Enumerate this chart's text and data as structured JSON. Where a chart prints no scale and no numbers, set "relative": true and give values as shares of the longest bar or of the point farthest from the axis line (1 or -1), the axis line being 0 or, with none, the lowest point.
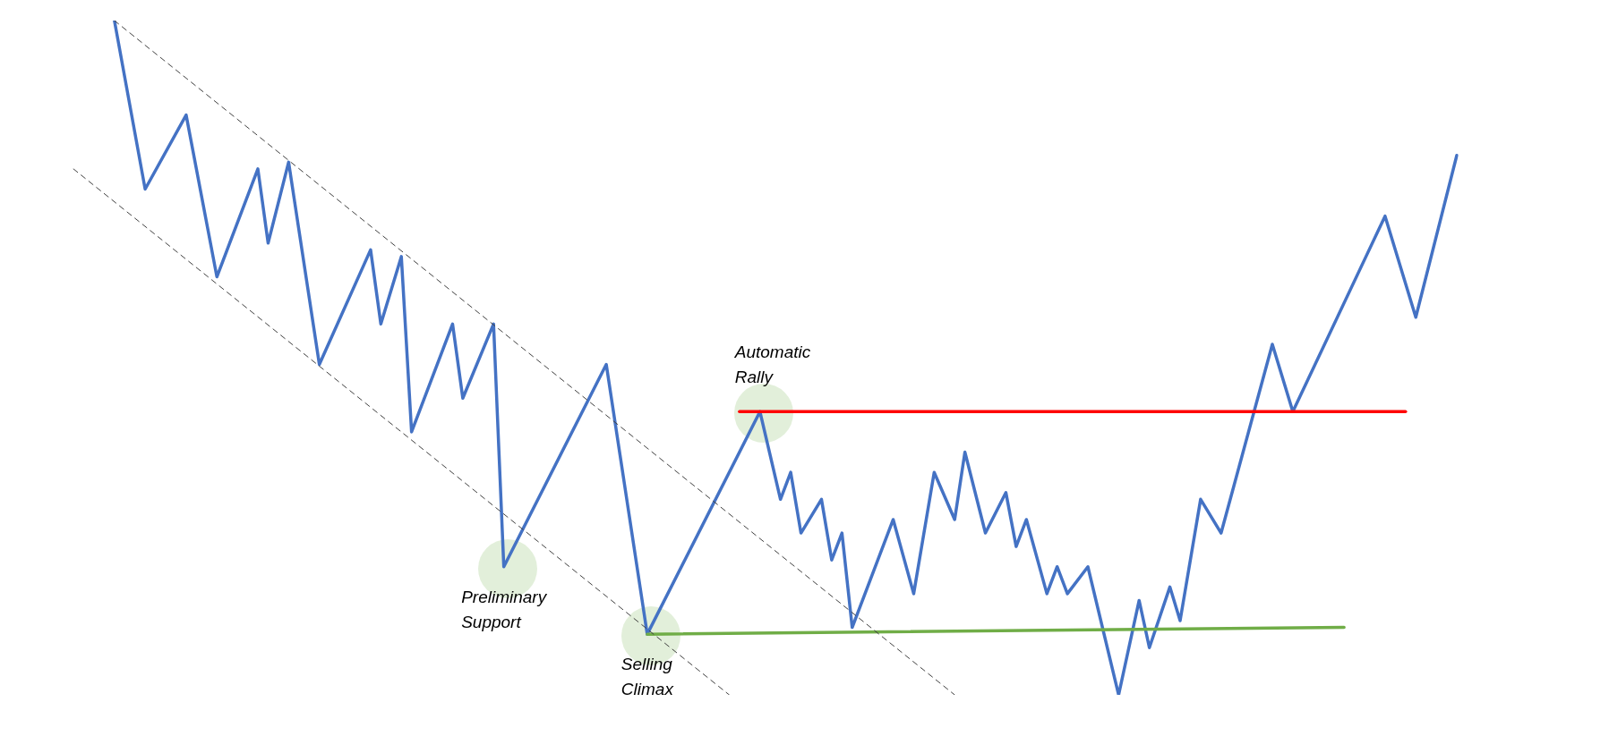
{
  "chart_data": {
    "type": "line",
    "relative": true,
    "marker": "none",
    "categories": [
      null,
      null,
      null,
      null,
      null,
      null,
      null,
      null,
      null,
      null,
      null,
      null,
      null,
      null,
      null,
      null,
      null,
      null,
      null,
      null,
      null,
      null,
      null,
      null,
      null,
      null,
      null,
      null,
      null,
      null,
      null,
      null,
      null,
      null,
      null,
      null,
      null,
      null,
      null,
      null,
      null,
      null,
      null,
      null,
      null,
      null,
      null,
      null,
      null,
      null,
      null,
      null,
      null,
      null,
      null,
      null,
      null,
      null,
      null,
      null,
      null,
      null,
      null,
      null,
      null,
      null,
      null,
      null,
      null,
      null,
      null,
      null,
      null,
      null,
      null,
      null,
      null,
      null,
      null,
      null,
      null,
      null,
      null,
      null,
      null,
      null,
      null,
      null,
      null,
      null,
      null,
      null,
      null,
      null,
      null,
      null,
      null,
      null,
      null,
      null,
      null,
      null,
      null,
      null,
      null,
      null,
      null,
      null,
      null,
      null,
      null,
      null,
      null,
      null,
      null,
      null,
      null,
      null,
      null,
      null,
      null,
      null,
      null,
      null,
      null,
      null,
      null,
      null,
      null,
      null,
      null,
      null,
      null,
      null,
      null,
      null
    ],
    "series": [
      {
        "line_style": "dashed",
        "color": "#404040",
        "values": [
          null,
          null,
          null,
          null,
          1.0,
          null,
          null,
          null,
          null,
          null,
          null,
          null,
          null,
          null,
          null,
          null,
          null,
          null,
          null,
          null,
          null,
          null,
          null,
          null,
          null,
          null,
          null,
          null,
          null,
          null,
          null,
          null,
          null,
          null,
          null,
          null,
          null,
          null,
          null,
          null,
          null,
          null,
          null,
          null,
          null,
          null,
          null,
          null,
          null,
          null,
          null,
          null,
          null,
          null,
          null,
          null,
          null,
          null,
          null,
          null,
          null,
          null,
          null,
          null,
          null,
          null,
          null,
          null,
          null,
          null,
          null,
          null,
          null,
          null,
          null,
          null,
          null,
          null,
          null,
          null,
          null,
          null,
          null,
          null,
          null,
          null,
          0.0,
          null,
          null,
          null,
          null,
          null,
          null,
          null,
          null,
          null,
          null,
          null,
          null,
          null,
          null,
          null,
          null,
          null,
          null,
          null,
          null,
          null,
          null,
          null,
          null,
          null,
          null,
          null,
          null,
          null,
          null,
          null,
          null,
          null,
          null,
          null,
          null,
          null,
          null,
          null,
          null,
          null,
          null,
          null,
          null,
          null,
          null,
          null,
          null,
          null
        ]
      },
      {
        "line_style": "dashed",
        "color": "#404040",
        "values": [
          0.78,
          null,
          null,
          null,
          null,
          null,
          null,
          null,
          null,
          null,
          null,
          null,
          null,
          null,
          null,
          null,
          null,
          null,
          null,
          null,
          null,
          null,
          null,
          null,
          null,
          null,
          null,
          null,
          null,
          null,
          null,
          null,
          null,
          null,
          null,
          null,
          null,
          null,
          null,
          null,
          null,
          null,
          null,
          null,
          null,
          null,
          null,
          null,
          null,
          null,
          null,
          null,
          null,
          null,
          null,
          null,
          null,
          null,
          null,
          null,
          null,
          null,
          null,
          null,
          0.0,
          null,
          null,
          null,
          null,
          null,
          null,
          null,
          null,
          null,
          null,
          null,
          null,
          null,
          null,
          null,
          null,
          null,
          null,
          null,
          null,
          null,
          null,
          null,
          null,
          null,
          null,
          null,
          null,
          null,
          null,
          null,
          null,
          null,
          null,
          null,
          null,
          null,
          null,
          null,
          null,
          null,
          null,
          null,
          null,
          null,
          null,
          null,
          null,
          null,
          null,
          null,
          null,
          null,
          null,
          null,
          null,
          null,
          null,
          null,
          null,
          null,
          null,
          null,
          null,
          null,
          null,
          null,
          null,
          null,
          null,
          null
        ]
      },
      {
        "line_style": "solid",
        "color": "#ff0000",
        "values": [
          null,
          null,
          null,
          null,
          null,
          null,
          null,
          null,
          null,
          null,
          null,
          null,
          null,
          null,
          null,
          null,
          null,
          null,
          null,
          null,
          null,
          null,
          null,
          null,
          null,
          null,
          null,
          null,
          null,
          null,
          null,
          null,
          null,
          null,
          null,
          null,
          null,
          null,
          null,
          null,
          null,
          null,
          null,
          null,
          null,
          null,
          null,
          null,
          null,
          null,
          null,
          null,
          null,
          null,
          null,
          null,
          null,
          null,
          null,
          null,
          null,
          null,
          null,
          null,
          null,
          0.42,
          null,
          null,
          null,
          null,
          null,
          null,
          null,
          null,
          null,
          null,
          null,
          null,
          null,
          null,
          null,
          null,
          null,
          null,
          null,
          null,
          null,
          null,
          null,
          null,
          null,
          null,
          null,
          null,
          null,
          null,
          null,
          null,
          null,
          null,
          null,
          null,
          null,
          null,
          null,
          null,
          null,
          null,
          null,
          null,
          null,
          null,
          null,
          null,
          null,
          null,
          null,
          null,
          null,
          null,
          null,
          null,
          null,
          null,
          null,
          null,
          null,
          null,
          null,
          null,
          0.42,
          null,
          null,
          null,
          null,
          null
        ]
      },
      {
        "line_style": "solid",
        "color": "#70ad47",
        "values": [
          null,
          null,
          null,
          null,
          null,
          null,
          null,
          null,
          null,
          null,
          null,
          null,
          null,
          null,
          null,
          null,
          null,
          null,
          null,
          null,
          null,
          null,
          null,
          null,
          null,
          null,
          null,
          null,
          null,
          null,
          null,
          null,
          null,
          null,
          null,
          null,
          null,
          null,
          null,
          null,
          null,
          null,
          null,
          null,
          null,
          null,
          null,
          null,
          null,
          null,
          null,
          null,
          null,
          null,
          null,
          null,
          0.09,
          null,
          null,
          null,
          null,
          null,
          null,
          null,
          null,
          null,
          null,
          null,
          null,
          null,
          null,
          null,
          null,
          null,
          null,
          null,
          null,
          null,
          null,
          null,
          null,
          null,
          null,
          null,
          null,
          null,
          null,
          null,
          null,
          null,
          null,
          null,
          null,
          null,
          null,
          null,
          null,
          null,
          null,
          null,
          null,
          null,
          null,
          null,
          null,
          null,
          null,
          null,
          null,
          null,
          null,
          null,
          null,
          null,
          null,
          null,
          null,
          null,
          null,
          null,
          null,
          null,
          null,
          null,
          0.1,
          null,
          null,
          null,
          null,
          null,
          null,
          null,
          null,
          null,
          null,
          null
        ]
      },
      {
        "line_style": "solid",
        "color": "#4472c4",
        "values": [
          null,
          null,
          null,
          null,
          1.0,
          null,
          null,
          0.75,
          null,
          null,
          null,
          0.86,
          null,
          null,
          0.62,
          null,
          null,
          null,
          0.78,
          0.67,
          null,
          0.79,
          null,
          null,
          0.49,
          null,
          null,
          null,
          null,
          0.66,
          0.55,
          null,
          0.65,
          0.39,
          null,
          null,
          null,
          0.55,
          0.44,
          null,
          null,
          0.55,
          0.19,
          null,
          null,
          null,
          null,
          null,
          null,
          null,
          null,
          null,
          0.49,
          null,
          null,
          null,
          0.09,
          null,
          null,
          null,
          null,
          null,
          null,
          null,
          null,
          null,
          null,
          0.42,
          null,
          0.29,
          0.33,
          0.24,
          null,
          0.29,
          0.2,
          0.24,
          0.1,
          null,
          null,
          null,
          0.26,
          null,
          0.15,
          null,
          0.33,
          null,
          0.26,
          0.36,
          null,
          0.24,
          null,
          0.3,
          0.22,
          0.26,
          null,
          0.15,
          0.19,
          0.15,
          null,
          0.19,
          null,
          null,
          0.0,
          null,
          0.14,
          0.07,
          null,
          0.16,
          0.11,
          null,
          0.29,
          null,
          0.24,
          null,
          null,
          null,
          null,
          0.52,
          null,
          0.42,
          null,
          null,
          null,
          null,
          null,
          null,
          null,
          null,
          0.71,
          null,
          null,
          0.56,
          null,
          null,
          null,
          0.8
        ]
      }
    ],
    "annotations": [
      {
        "text": "Preliminary Support",
        "y": 0.19
      },
      {
        "text": "Selling Climax",
        "y": 0.09
      },
      {
        "text": "Automatic Rally",
        "y": 0.42
      }
    ]
  }
}
